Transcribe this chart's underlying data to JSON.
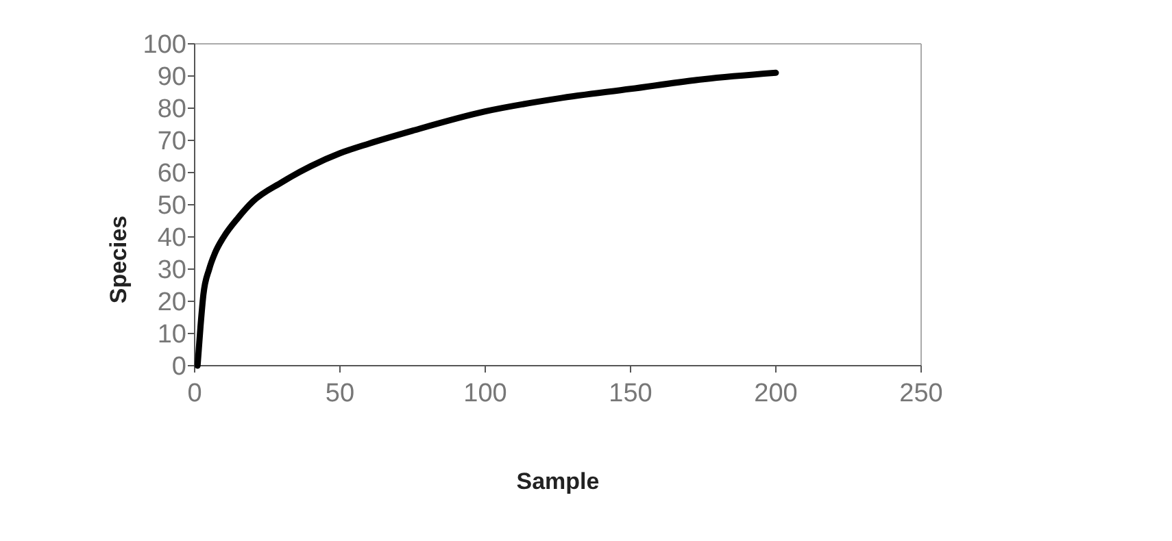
{
  "chart_data": {
    "type": "line",
    "xlabel": "Sample",
    "ylabel": "Species",
    "x": [
      1,
      2,
      3,
      5,
      7,
      10,
      15,
      20,
      30,
      40,
      50,
      60,
      75,
      100,
      125,
      150,
      175,
      200
    ],
    "series": [
      {
        "color": "#000000",
        "values": [
          0,
          12,
          22,
          30,
          35,
          40,
          46,
          51,
          57,
          62,
          66,
          69,
          73,
          79,
          83,
          86,
          89,
          91
        ]
      }
    ],
    "xlim": [
      0,
      250
    ],
    "xticks": [
      0,
      50,
      100,
      150,
      200,
      250
    ],
    "ylim": [
      0,
      100
    ],
    "yticks": [
      0,
      10,
      20,
      30,
      40,
      50,
      60,
      70,
      80,
      90,
      100
    ],
    "grid": false,
    "marker": "none",
    "line_style": "solid"
  }
}
